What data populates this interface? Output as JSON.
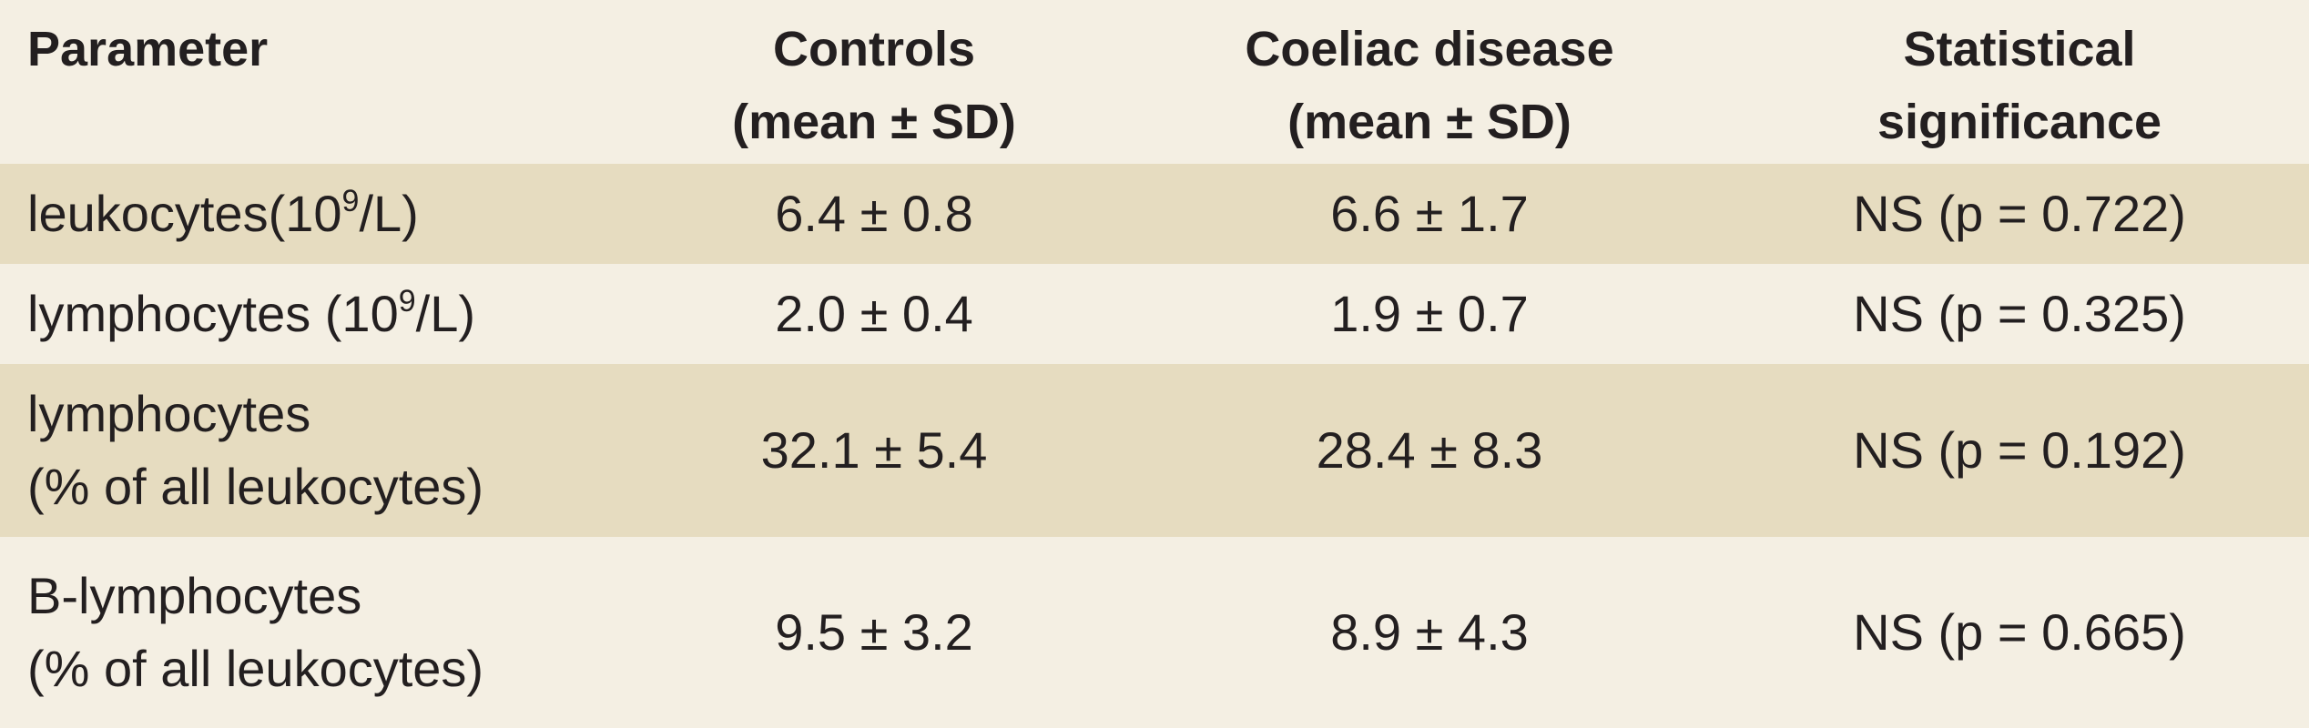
{
  "headers": {
    "parameter": "Parameter",
    "controls_line1": "Controls",
    "controls_line2": "(mean  ± SD)",
    "coeliac_line1": "Coeliac disease",
    "coeliac_line2": "(mean  ± SD)",
    "significance_line1": "Statistical",
    "significance_line2": "significance"
  },
  "rows": [
    {
      "param_line1": "leukocytes(10",
      "param_sup": "9",
      "param_after": "/L)",
      "param_line2": "",
      "controls": "6.4 ± 0.8",
      "coeliac": "6.6 ± 1.7",
      "significance": "NS (p = 0.722)"
    },
    {
      "param_line1": "lymphocytes (10",
      "param_sup": "9",
      "param_after": "/L)",
      "param_line2": "",
      "controls": "2.0 ± 0.4",
      "coeliac": "1.9 ± 0.7",
      "significance": "NS (p = 0.325)"
    },
    {
      "param_line1": "lymphocytes",
      "param_line2": "(% of all leukocytes)",
      "controls": "32.1 ± 5.4",
      "coeliac": "28.4 ± 8.3",
      "significance": "NS (p = 0.192)"
    },
    {
      "param_line1": "B-lymphocytes",
      "param_line2": "(% of all leukocytes)",
      "controls": "9.5 ± 3.2",
      "coeliac": "8.9 ± 4.3",
      "significance": "NS (p = 0.665)"
    }
  ]
}
